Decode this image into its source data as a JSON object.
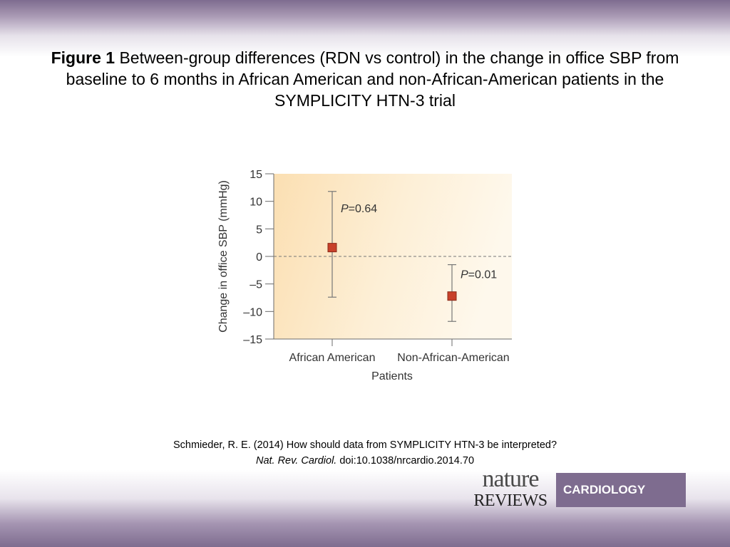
{
  "title": {
    "prefix": "Figure 1",
    "text": " Between-group differences (RDN vs control) in the change in office SBP from baseline to 6 months in African American and non-African-American patients in the SYMPLICITY HTN-3 trial"
  },
  "chart_data": {
    "type": "scatter",
    "ylabel": "Change in office SBP (mmHg)",
    "xlabel": "Patients",
    "ylim": [
      -15,
      15
    ],
    "yticks": [
      15,
      10,
      5,
      0,
      -5,
      -10,
      -15
    ],
    "ytick_labels": [
      "15",
      "10",
      "5",
      "0",
      "–5",
      "–10",
      "–15"
    ],
    "categories": [
      "African American",
      "Non-African-American"
    ],
    "values": [
      1.6,
      -7.2
    ],
    "ci_upper": [
      11.8,
      -1.5
    ],
    "ci_lower": [
      -7.4,
      -11.8
    ],
    "p_labels": [
      "P = 0.64",
      "P = 0.01"
    ],
    "reference_line": 0,
    "marker_color": "#c8412a",
    "background_color": "#fbe6c2"
  },
  "citation": {
    "line1": "Schmieder, R. E. (2014) How should data from SYMPLICITY HTN-3 be interpreted?",
    "journal": "Nat. Rev. Cardiol.",
    "doi": " doi:10.1038/nrcardio.2014.70"
  },
  "logo": {
    "nature": "nature",
    "reviews": "REVIEWS",
    "cardiology": "CARDIOLOGY"
  }
}
